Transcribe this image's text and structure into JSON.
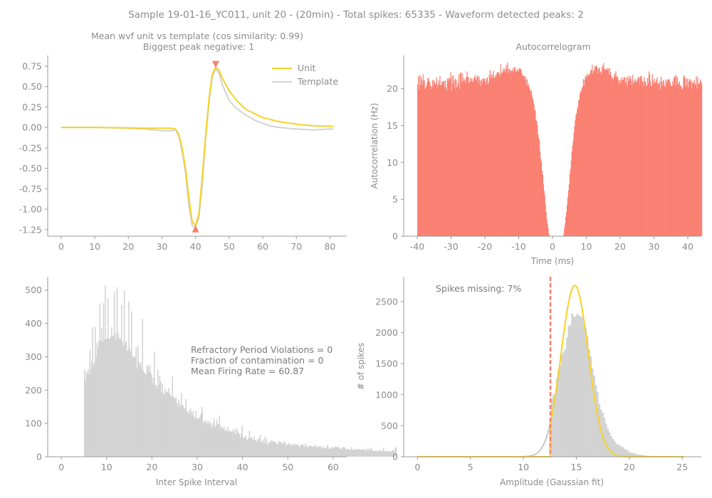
{
  "figure": {
    "suptitle": "Sample 19-01-16_YC011, unit 20 - (20min) - Total spikes: 65335 - Waveform detected peaks: 2"
  },
  "colors": {
    "text": "#8c8c8c",
    "unit": "#f5d327",
    "template": "#d3d3d3",
    "salmon": "#fa8072",
    "hist_gray": "#d3d3d3",
    "fit_gray": "#c8c8c8"
  },
  "chart_data": [
    {
      "id": "waveform",
      "type": "line",
      "title": "Mean wvf unit vs template (cos similarity: 0.99)",
      "subtitle": "Biggest peak negative: 1",
      "xlabel": "",
      "ylabel": "",
      "xlim": [
        -4,
        85
      ],
      "ylim": [
        -1.33,
        0.88
      ],
      "xticks": [
        0,
        10,
        20,
        30,
        40,
        50,
        60,
        70,
        80
      ],
      "yticks": [
        "0.75",
        "0.50",
        "0.25",
        "0.00",
        "-0.25",
        "-0.50",
        "-0.75",
        "-1.00",
        "-1.25"
      ],
      "ytick_values": [
        0.75,
        0.5,
        0.25,
        0.0,
        -0.25,
        -0.5,
        -0.75,
        -1.0,
        -1.25
      ],
      "legend_position": "top-right",
      "series": [
        {
          "name": "Unit",
          "color": "#f5d327",
          "x": [
            0,
            10,
            20,
            25,
            30,
            33,
            34,
            35,
            36,
            37,
            38,
            39,
            40,
            41,
            42,
            43,
            44,
            45,
            46,
            47,
            48,
            50,
            52,
            55,
            60,
            65,
            70,
            75,
            80,
            81
          ],
          "y": [
            0.0,
            0.0,
            -0.005,
            -0.01,
            -0.01,
            -0.01,
            -0.02,
            -0.08,
            -0.25,
            -0.5,
            -0.85,
            -1.15,
            -1.2,
            -1.05,
            -0.6,
            -0.1,
            0.35,
            0.65,
            0.74,
            0.7,
            0.6,
            0.45,
            0.34,
            0.22,
            0.12,
            0.07,
            0.04,
            0.02,
            0.015,
            0.01
          ]
        },
        {
          "name": "Template",
          "color": "#d3d3d3",
          "x": [
            0,
            10,
            20,
            25,
            30,
            33,
            34,
            35,
            36,
            37,
            38,
            39,
            40,
            41,
            42,
            43,
            44,
            45,
            46,
            47,
            48,
            50,
            52,
            55,
            58,
            60,
            62,
            65,
            70,
            75,
            80,
            81
          ],
          "y": [
            0.0,
            0.0,
            -0.01,
            -0.02,
            -0.04,
            -0.04,
            -0.03,
            -0.1,
            -0.3,
            -0.55,
            -0.95,
            -1.2,
            -1.23,
            -1.1,
            -0.7,
            -0.15,
            0.3,
            0.62,
            0.72,
            0.66,
            0.52,
            0.33,
            0.24,
            0.15,
            0.08,
            0.05,
            0.02,
            0.0,
            -0.02,
            -0.03,
            -0.02,
            -0.02
          ]
        }
      ],
      "markers": [
        {
          "x": 40,
          "y": -1.24,
          "direction": "up"
        },
        {
          "x": 46,
          "y": 0.77,
          "direction": "down"
        }
      ]
    },
    {
      "id": "autocorrelogram",
      "type": "bar",
      "title": "Autocorrelogram",
      "xlabel": "Time (ms)",
      "ylabel": "Autocorrelation (Hz)",
      "xlim": [
        -44,
        44
      ],
      "ylim": [
        0,
        24.5
      ],
      "xticks": [
        -40,
        -30,
        -20,
        -10,
        0,
        10,
        20,
        30,
        40
      ],
      "yticks": [
        0,
        5,
        10,
        15,
        20
      ],
      "color": "#fa8072",
      "x_start": -40,
      "bin_width": 0.2,
      "values": [
        20.6,
        21.69,
        19.91,
        21.87,
        20.51,
        21.6,
        21.25,
        20.5,
        21.93,
        21.02,
        21.14,
        19.98,
        20.08,
        20.37,
        20.84,
        21.41,
        21.44,
        20.98,
        20.89,
        20.32,
        20.37,
        19.93,
        21.2,
        20.45,
        21.12,
        20.87,
        20.53,
        20.68,
        21.5,
        20.07,
        20.55,
        21.13,
        20.57,
        21.7,
        20.45,
        20.52,
        20.93,
        20.8,
        21.05,
        21.03,
        20.24,
        21.11,
        20.14,
        19.74,
        21.39,
        21.05,
        21.46,
        21.43,
        21.18,
        22.26,
        19.67,
        21.7,
        20.67,
        21.82,
        21.11,
        20.02,
        21.35,
        21.21,
        20.17,
        20.31,
        20.78,
        21.96,
        19.98,
        22.13,
        22.2,
        20.93,
        22.07,
        20.96,
        21.42,
        21.07,
        21.26,
        20.71,
        21.59,
        22.33,
        21.61,
        21.56,
        20.69,
        20.99,
        21.46,
        21.02,
        21.44,
        20.95,
        20.96,
        21.34,
        21.61,
        21.85,
        21.06,
        21.42,
        21.79,
        21.71,
        20.69,
        21.64,
        21.17,
        20.38,
        21.08,
        21.3,
        20.75,
        21.4,
        21.31,
        21.35,
        21.01,
        20.62,
        21.48,
        21.47,
        20.56,
        20.9,
        21.87,
        22.52,
        21.49,
        21.98,
        21.43,
        21.84,
        22.41,
        21.5,
        21.4,
        21.82,
        21.66,
        22.06,
        22.28,
        22.22,
        22.01,
        22.14,
        21.65,
        23.32,
        22.01,
        22.21,
        22.34,
        22.77,
        22.44,
        22.73,
        22.28,
        23.18,
        22.7,
        23.56,
        22.15,
        22.77,
        22.6,
        22.18,
        22.49,
        22.4,
        22.43,
        22.74,
        22.15,
        22.86,
        22.94,
        22.35,
        22.3,
        22.66,
        22.51,
        22.27,
        22.83,
        22.59,
        22.75,
        22.58,
        22.14,
        21.82,
        21.65,
        21.78,
        21.65,
        21.16,
        21.59,
        20.54,
        21.24,
        20.38,
        20.63,
        20.17,
        19.83,
        19.61,
        19.78,
        19.08,
        18.69,
        18.38,
        17.88,
        17.13,
        17.05,
        15.74,
        15.59,
        15.07,
        13.78,
        13.34,
        13.0,
        11.48,
        10.46,
        10.06,
        8.87,
        8.36,
        7.02,
        6.14,
        5.55,
        4.3,
        3.31,
        2.31,
        1.68,
        1.04,
        0.34,
        0.0,
        0.0,
        0.0,
        0.0,
        0.0,
        0.0,
        0.0,
        0.0,
        0.0,
        0.0,
        0.0,
        0.0,
        0.0,
        0.0,
        0.0,
        0.0,
        0.0,
        0.0,
        0.0,
        0.0,
        0.0,
        0.33,
        1.06,
        1.72,
        2.62,
        3.29,
        4.26,
        5.32,
        6.21,
        7.06,
        8.44,
        9.1,
        10.24,
        11.45,
        12.31,
        12.94,
        14.04,
        14.91,
        15.73,
        16.42,
        16.69,
        17.25,
        17.53,
        18.4,
        18.55,
        19.31,
        19.74,
        19.57,
        20.11,
        20.25,
        21.3,
        20.47,
        21.23,
        21.67,
        21.56,
        21.86,
        21.96,
        21.59,
        21.89,
        21.94,
        22.05,
        22.5,
        22.54,
        23.27,
        22.06,
        22.44,
        22.48,
        23.04,
        22.95,
        23.17,
        22.95,
        22.02,
        22.71,
        22.65,
        22.88,
        22.18,
        22.36,
        21.95,
        23.14,
        22.92,
        23.49,
        22.6,
        22.69,
        22.64,
        22.46,
        22.81,
        22.54,
        22.74,
        21.88,
        22.8,
        22.24,
        21.79,
        21.51,
        21.43,
        21.1,
        21.55,
        22.05,
        21.76,
        22.37,
        21.63,
        21.66,
        21.48,
        21.14,
        20.63,
        21.06,
        21.27,
        20.73,
        21.56,
        21.2,
        21.17,
        21.56,
        21.57,
        20.95,
        20.65,
        21.54,
        20.26,
        21.74,
        21.03,
        21.4,
        21.74,
        21.37,
        21.06,
        20.45,
        21.89,
        20.84,
        21.11,
        20.8,
        21.33,
        21.0,
        20.88,
        21.27,
        21.52,
        21.59,
        20.54,
        21.58,
        21.73,
        21.72,
        20.9,
        20.99,
        20.34,
        21.58,
        20.94,
        20.98,
        20.43,
        20.43,
        21.45,
        20.71,
        22.34,
        21.96,
        21.08,
        20.31,
        20.38,
        22.0,
        21.09,
        20.71,
        21.34,
        20.88,
        20.87,
        21.19,
        21.55,
        20.71,
        20.61,
        20.74,
        21.03,
        19.96,
        21.63,
        20.93,
        20.41,
        21.19,
        21.0,
        20.43,
        20.22,
        21.27,
        20.73,
        21.13,
        21.2,
        21.32,
        21.26,
        20.95,
        20.57,
        20.35,
        20.33,
        21.07,
        20.48,
        21.59,
        21.52,
        21.85,
        20.4,
        21.74,
        21.47,
        20.58,
        20.71,
        21.03,
        20.32,
        20.46,
        20.21,
        19.87,
        20.03,
        21.63,
        21.81,
        21.49,
        20.32,
        21.38,
        20.55,
        21.34,
        20.17,
        21.03,
        21.36,
        20.91,
        21.23,
        20.02,
        20.92,
        20.83,
        20.78,
        21.17,
        20.51,
        20.6,
        21.7,
        20.03,
        21.53,
        20.67,
        20.67,
        20.75,
        21.26,
        20.95,
        20.65
      ]
    },
    {
      "id": "isi",
      "type": "bar",
      "title": "",
      "xlabel": "Inter Spike Interval",
      "ylabel": "",
      "xlim": [
        -3,
        63
      ],
      "ylim": [
        0,
        540
      ],
      "xticks": [
        0,
        10,
        20,
        30,
        40,
        50,
        60
      ],
      "yticks": [
        0,
        100,
        200,
        300,
        400,
        500
      ],
      "color": "#d3d3d3",
      "x_start": 5,
      "bin_width": 0.2,
      "values": [
        262.4,
        229.1,
        255.2,
        249.7,
        263.0,
        249.1,
        320.1,
        263.3,
        285.3,
        388.1,
        273.0,
        281.2,
        390.3,
        302.1,
        342.5,
        326.3,
        349.6,
        458.1,
        347.3,
        385.6,
        345.3,
        460.7,
        352.1,
        514.8,
        353.2,
        353.9,
        475.6,
        353.7,
        354.3,
        359.2,
        389.1,
        362.3,
        362.1,
        496.6,
        370.8,
        352.6,
        508.7,
        372.5,
        357.2,
        352.9,
        352.6,
        455.2,
        344.3,
        332.0,
        499.1,
        339.9,
        346.4,
        318.7,
        317.9,
        464.6,
        326.8,
        313.7,
        435.9,
        299.6,
        298.5,
        302.4,
        296.9,
        329.6,
        266.4,
        332.8,
        284.1,
        273.2,
        283.8,
        263.4,
        413.3,
        258.8,
        251.4,
        250.5,
        244.9,
        275.4,
        270.0,
        255.5,
        274.8,
        253.2,
        246.9,
        220.3,
        236.7,
        315.7,
        214.6,
        215.8,
        206.0,
        260.8,
        216.0,
        243.0,
        226.1,
        193.7,
        219.0,
        191.7,
        187.6,
        204.6,
        192.4,
        196.4,
        193.4,
        206.5,
        191.4,
        184.1,
        178.6,
        240.7,
        180.6,
        176.1,
        174.7,
        179.2,
        161.0,
        150.3,
        171.7,
        159.3,
        150.5,
        191.3,
        155.7,
        152.8,
        143.8,
        145.9,
        172.7,
        134.7,
        136.2,
        126.5,
        138.6,
        146.1,
        133.8,
        125.5,
        137.5,
        119.1,
        113.1,
        139.3,
        115.8,
        114.4,
        114.9,
        117.3,
        124.8,
        132.0,
        149.0,
        101.8,
        104.0,
        109.9,
        96.8,
        106.5,
        99.6,
        107.9,
        98.2,
        103.6,
        95.1,
        88.4,
        101.6,
        114.0,
        87.3,
        95.2,
        111.2,
        96.3,
        99.2,
        123.1,
        85.2,
        92.3,
        87.8,
        82.8,
        90.5,
        78.9,
        81.1,
        75.8,
        89.7,
        78.1,
        76.1,
        77.4,
        75.9,
        75.5,
        83.1,
        70.9,
        81.3,
        67.3,
        86.2,
        78.0,
        71.3,
        68.6,
        57.4,
        69.5,
        93.3,
        59.3,
        55.3,
        58.8,
        63.0,
        52.2,
        48.6,
        55.7,
        77.6,
        56.5,
        60.0,
        54.2,
        51.7,
        61.9,
        49.6,
        48.2,
        45.0,
        54.1,
        47.7,
        55.9,
        65.2,
        43.2,
        45.7,
        52.2,
        40.5,
        58.9,
        42.7,
        54.1,
        36.3,
        39.9,
        45.8,
        43.8,
        49.3,
        47.2,
        47.6,
        43.3,
        44.7,
        43.2,
        38.6,
        35.6,
        43.6,
        46.5,
        44.3,
        43.9,
        36.7,
        40.9,
        42.9,
        46.3,
        33.8,
        38.9,
        34.4,
        37.3,
        42.6,
        35.3,
        33.2,
        37.6,
        37.7,
        33.8,
        40.9,
        34.0,
        35.4,
        37.4,
        34.2,
        28.3,
        31.4,
        36.9,
        38.1,
        35.1,
        33.8,
        28.0,
        40.6,
        30.8,
        31.4,
        26.7,
        34.1,
        33.0,
        30.5,
        32.3,
        29.6,
        29.6,
        32.4,
        35.5,
        26.6,
        29.8,
        31.7,
        28.3,
        33.5,
        28.0,
        24.9,
        29.5,
        27.9,
        26.6,
        25.0,
        26.6,
        34.8,
        30.7,
        23.2,
        23.8,
        25.7,
        30.5,
        23.6,
        28.2,
        27.3,
        30.1,
        28.4,
        29.3,
        30.0,
        26.5,
        24.4,
        23.5,
        24.3,
        28.5,
        29.0,
        27.5,
        24.8,
        20.1,
        21.8,
        24.3,
        22.4,
        21.4,
        21.5,
        29.8,
        20.4,
        20.6,
        21.6,
        23.5,
        19.8,
        22.9,
        23.0,
        23.3,
        22.2,
        21.2,
        20.9,
        24.0,
        20.1,
        21.7,
        23.1,
        16.7,
        20.1,
        28.3,
        19.6,
        20.9,
        25.8,
        22.9,
        18.3,
        16.3,
        18.4,
        16.6,
        18.4,
        17.7,
        16.6,
        17.6,
        20.5,
        18.4,
        16.7,
        18.4,
        27.1,
        15.7,
        16.9,
        17.5,
        16.8,
        17.7,
        16.0,
        15.7,
        15.9,
        15.6,
        19.4,
        21.2,
        14.5,
        25.3,
        28.7
      ],
      "annotations": [
        "Refractory Period Violations = 0",
        "Fraction of contamination = 0",
        "Mean Firing Rate = 60.87"
      ]
    },
    {
      "id": "amplitude",
      "type": "bar",
      "title": "",
      "xlabel": "Amplitude (Gaussian fit)",
      "ylabel": "# of spikes",
      "xlim": [
        -1.3,
        26.8
      ],
      "ylim": [
        0,
        2900
      ],
      "xticks": [
        0,
        5,
        10,
        15,
        20,
        25
      ],
      "yticks": [
        0,
        500,
        1000,
        1500,
        2000,
        2500
      ],
      "color": "#d3d3d3",
      "x_start": 12.6,
      "bin_width": 0.16,
      "values": [
        946.0,
        1002.0,
        1014.0,
        1263.0,
        1407.0,
        1471.0,
        1649.0,
        1683.0,
        1734.0,
        1924.0,
        2106.0,
        2119.0,
        2308.0,
        2256.0,
        2262.0,
        2302.0,
        2279.0,
        2262.0,
        2244.0,
        2145.0,
        2070.0,
        1943.0,
        1733.0,
        1616.0,
        1421.0,
        1305.0,
        1156.0,
        1045.0,
        854.0,
        760.0,
        708.0,
        631.0,
        529.0,
        450.0,
        392.0,
        331.0,
        289.0,
        252.0,
        209.0,
        198.0,
        186.0,
        161.0,
        156.0,
        124.0,
        111.0,
        98.0,
        70.0,
        64.0,
        58.0,
        51.0,
        41.0,
        36.0,
        33.0,
        28.0,
        27.0,
        21.0,
        16.0,
        16.0,
        13.0,
        11.0,
        11.0,
        10.0,
        8.0,
        7.0,
        6.0,
        4.0,
        4.0,
        5.0,
        3.0,
        2.0
      ],
      "gauss_fit": {
        "amplitude": 2760,
        "mean": 14.85,
        "sigma": 1.28,
        "x_range": [
          0,
          25.2
        ]
      },
      "cutoff_x": 12.55,
      "annotation": "Spikes missing: 7%"
    }
  ]
}
